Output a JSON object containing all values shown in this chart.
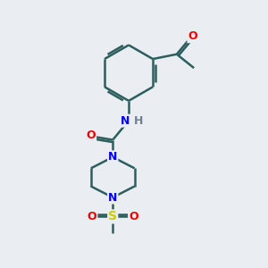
{
  "background_color": "#eaeef2",
  "bond_color": "#2d5e5e",
  "bond_width": 1.8,
  "atom_colors": {
    "C": "#000000",
    "N": "#0000ee",
    "O": "#ee0000",
    "S": "#cccc00",
    "H": "#708090"
  },
  "font_size": 8,
  "fig_size": [
    3.0,
    3.0
  ],
  "dpi": 100
}
